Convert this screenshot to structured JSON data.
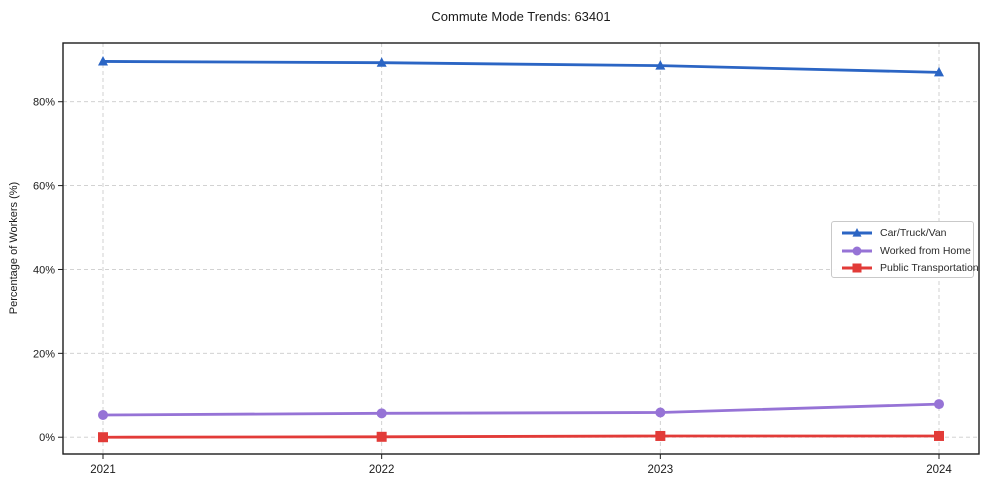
{
  "chart_data": {
    "type": "line",
    "title": "Commute Mode Trends: 63401",
    "xlabel": "",
    "ylabel": "Percentage of Workers (%)",
    "x": [
      "2021",
      "2022",
      "2023",
      "2024"
    ],
    "series": [
      {
        "name": "Car/Truck/Van",
        "marker": "triangle",
        "color": "#2b65c4",
        "values": [
          89.6,
          89.3,
          88.6,
          87.0
        ]
      },
      {
        "name": "Worked from Home",
        "marker": "circle",
        "color": "#9673d6",
        "values": [
          5.3,
          5.7,
          5.9,
          7.9
        ]
      },
      {
        "name": "Public Transportation",
        "marker": "square",
        "color": "#e23b38",
        "values": [
          0.0,
          0.1,
          0.3,
          0.3
        ]
      }
    ],
    "yticks": [
      0,
      20,
      40,
      60,
      80
    ],
    "ytick_labels": [
      "0%",
      "20%",
      "40%",
      "60%",
      "80%"
    ],
    "ylim": [
      -4,
      94
    ],
    "grid": true,
    "grid_style": "dashed",
    "legend_position": "center right",
    "colors": {
      "grid": "#cccccc",
      "axis": "#1d1d1d",
      "text": "#1a1a1a",
      "background": "#ffffff"
    }
  }
}
